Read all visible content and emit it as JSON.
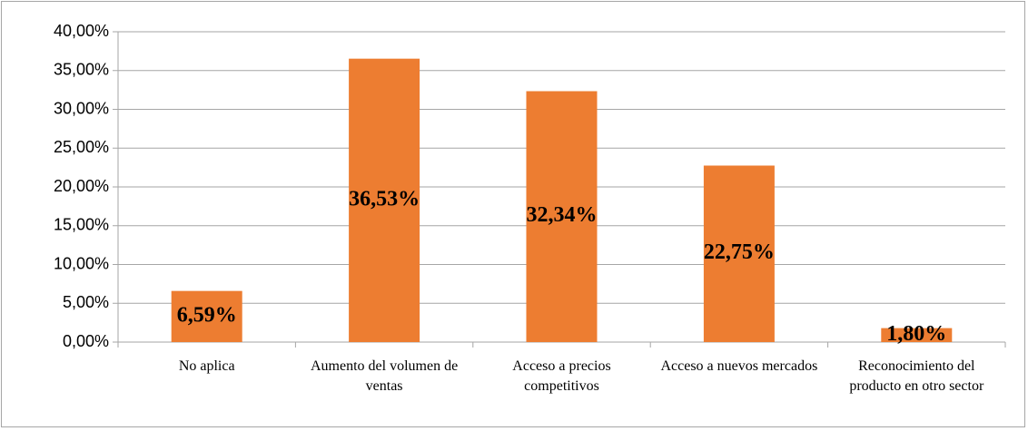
{
  "chart_data": {
    "type": "bar",
    "categories": [
      "No aplica",
      "Aumento del volumen de ventas",
      "Acceso a precios competitivos",
      "Acceso a nuevos mercados",
      "Reconocimiento del producto en otro sector"
    ],
    "values": [
      6.59,
      36.53,
      32.34,
      22.75,
      1.8
    ],
    "value_labels": [
      "6,59%",
      "36,53%",
      "32,34%",
      "22,75%",
      "1,80%"
    ],
    "color": "#ed7d31",
    "ylim": [
      0,
      40
    ],
    "yticks": [
      {
        "value": 0,
        "label": "0,00%"
      },
      {
        "value": 5,
        "label": "5,00%"
      },
      {
        "value": 10,
        "label": "10,00%"
      },
      {
        "value": 15,
        "label": "15,00%"
      },
      {
        "value": 20,
        "label": "20,00%"
      },
      {
        "value": 25,
        "label": "25,00%"
      },
      {
        "value": 30,
        "label": "30,00%"
      },
      {
        "value": 35,
        "label": "35,00%"
      },
      {
        "value": 40,
        "label": "40,00%"
      }
    ],
    "grid": true
  }
}
